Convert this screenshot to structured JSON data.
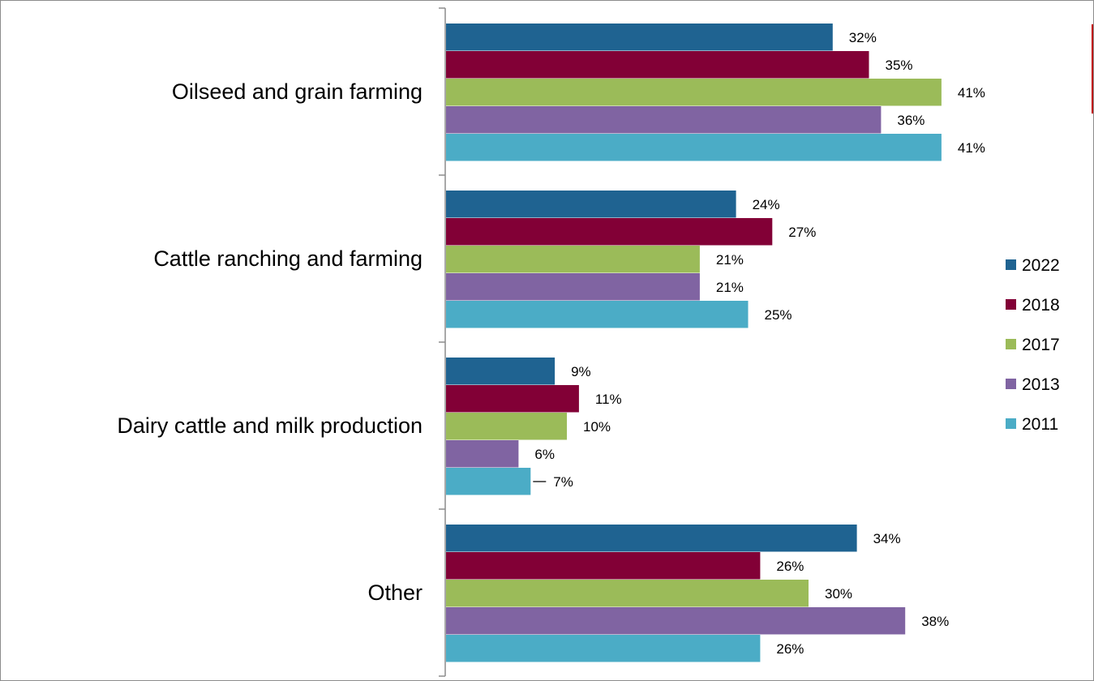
{
  "chart_data": {
    "type": "bar",
    "orientation": "horizontal",
    "categories": [
      "Oilseed and grain farming",
      "Cattle ranching and farming",
      "Dairy cattle and milk production",
      "Other"
    ],
    "series": [
      {
        "name": "2022",
        "color": "#1f6391",
        "values": [
          32,
          24,
          9,
          34
        ]
      },
      {
        "name": "2018",
        "color": "#820036",
        "values": [
          35,
          27,
          11,
          26
        ]
      },
      {
        "name": "2017",
        "color": "#9bbb59",
        "values": [
          41,
          21,
          10,
          30
        ]
      },
      {
        "name": "2013",
        "color": "#8064a2",
        "values": [
          36,
          21,
          6,
          38
        ]
      },
      {
        "name": "2011",
        "color": "#4bacc6",
        "values": [
          41,
          25,
          7,
          26
        ]
      }
    ],
    "value_labels": [
      [
        "32%",
        "24%",
        "9%",
        "34%"
      ],
      [
        "35%",
        "27%",
        "11%",
        "26%"
      ],
      [
        "41%",
        "21%",
        "10%",
        "30%"
      ],
      [
        "36%",
        "21%",
        "6%",
        "38%"
      ],
      [
        "41%",
        "25%",
        "7%",
        "26%"
      ]
    ],
    "xlim": [
      0,
      53
    ],
    "legend_position": "right",
    "grid": false
  }
}
